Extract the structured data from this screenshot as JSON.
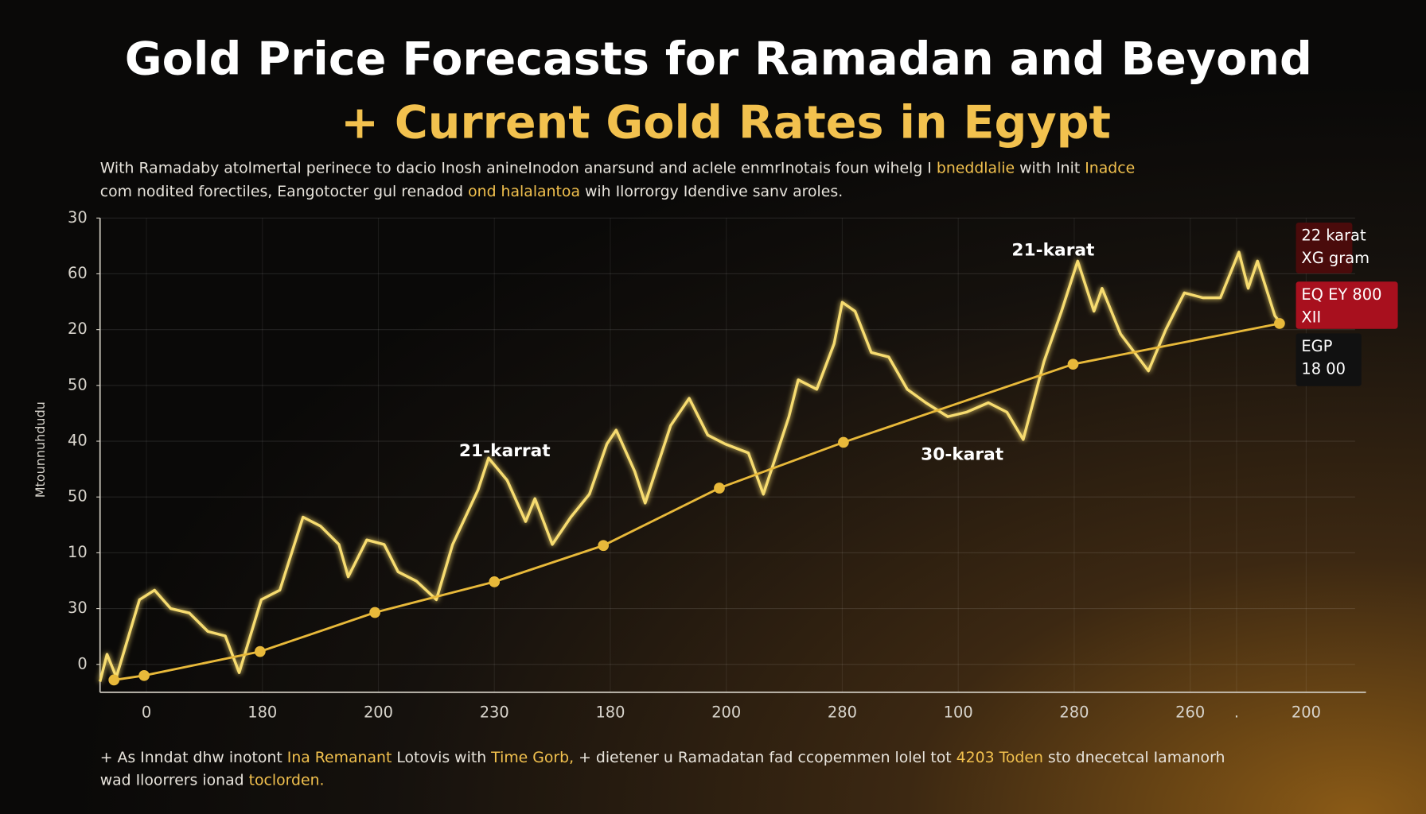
{
  "chart_data": {
    "type": "line",
    "title": "Gold Price Forecasts for Ramadan and Beyond",
    "title_line2": "+ Current Gold Rates in Egypt",
    "title_line2_color": "#f2c14e",
    "subtitle": [
      [
        {
          "text": "With Ramadaby atolmertal perinece to dacio Inosh anineInodon anarsund and aclele enmrInotais foun wihelg I ",
          "highlight": false
        },
        {
          "text": "bneddlalie",
          "highlight": true
        },
        {
          "text": " with Init ",
          "highlight": false
        },
        {
          "text": "Inadce",
          "highlight": true
        }
      ],
      [
        {
          "text": "com nodited forectiles, Eangotocter gul renadod ",
          "highlight": false
        },
        {
          "text": "ond halalantoa",
          "highlight": true
        },
        {
          "text": " wih Ilorrorgy Idendive sanv aroles.",
          "highlight": false
        }
      ]
    ],
    "footnote": [
      [
        {
          "text": "+ As Inndat dhw inotont ",
          "highlight": false
        },
        {
          "text": "Ina Remanant",
          "highlight": true
        },
        {
          "text": " Lotovis with ",
          "highlight": false
        },
        {
          "text": "Time Gorb,",
          "highlight": true
        },
        {
          "text": " + dietener u Ramadatan fad ccopemmen lolel tot ",
          "highlight": false
        },
        {
          "text": "4203 Toden",
          "highlight": true
        },
        {
          "text": " sto dnecetcal Iamanorh",
          "highlight": false
        }
      ],
      [
        {
          "text": "wad Iloorrers ionad ",
          "highlight": false
        },
        {
          "text": "toclorden.",
          "highlight": true
        }
      ]
    ],
    "highlight_color": "#f2c14e",
    "y_label": "Mtounnuhdudu",
    "xlim": [
      -0.4,
      10.5
    ],
    "ylim": [
      -0.5,
      8
    ],
    "xticks": [
      0,
      {
        "value": 1,
        "label": "180"
      },
      {
        "value": 2,
        "label": "200"
      },
      {
        "value": 3,
        "label": "230"
      },
      {
        "value": 4,
        "label": "180"
      },
      {
        "value": 5,
        "label": "200"
      },
      {
        "value": 6,
        "label": "280"
      },
      {
        "value": 7,
        "label": "100"
      },
      {
        "value": 8,
        "label": "280"
      },
      {
        "value": 9,
        "label": "260"
      },
      {
        "value": 9.4,
        "label": "."
      },
      {
        "value": 10,
        "label": "200"
      }
    ],
    "yticks": [
      0,
      {
        "value": 1,
        "label": "30"
      },
      {
        "value": 2,
        "label": "10"
      },
      {
        "value": 3,
        "label": "50"
      },
      {
        "value": 4,
        "label": "40"
      },
      {
        "value": 5,
        "label": "50"
      },
      {
        "value": 6,
        "label": "20"
      },
      {
        "value": 7,
        "label": "60"
      },
      {
        "value": 8,
        "label": "30"
      }
    ],
    "grid": true,
    "series": [
      {
        "color": "#f7dc6f",
        "glow": true,
        "markers": false,
        "x": [
          -0.4,
          -0.34,
          -0.26,
          -0.06,
          0.07,
          0.21,
          0.37,
          0.53,
          0.68,
          0.8,
          0.99,
          1.15,
          1.35,
          1.5,
          1.66,
          1.74,
          1.9,
          2.05,
          2.17,
          2.33,
          2.5,
          2.64,
          2.86,
          2.95,
          3.11,
          3.27,
          3.35,
          3.5,
          3.66,
          3.82,
          3.97,
          4.05,
          4.21,
          4.3,
          4.52,
          4.68,
          4.84,
          4.99,
          5.19,
          5.32,
          5.54,
          5.62,
          5.78,
          5.93,
          6.0,
          6.11,
          6.25,
          6.4,
          6.56,
          6.72,
          6.91,
          7.07,
          7.26,
          7.42,
          7.56,
          7.74,
          7.89,
          8.03,
          8.17,
          8.24,
          8.4,
          8.64,
          8.79,
          8.95,
          9.11,
          9.26,
          9.42,
          9.5,
          9.58,
          9.73,
          9.79
        ],
        "values": [
          -0.31,
          0.18,
          -0.23,
          1.16,
          1.33,
          1.0,
          0.92,
          0.59,
          0.51,
          -0.15,
          1.16,
          1.33,
          2.64,
          2.48,
          2.15,
          1.57,
          2.23,
          2.15,
          1.66,
          1.49,
          1.16,
          2.15,
          3.13,
          3.7,
          3.3,
          2.56,
          2.97,
          2.15,
          2.64,
          3.05,
          3.95,
          4.2,
          3.46,
          2.89,
          4.28,
          4.77,
          4.11,
          3.95,
          3.79,
          3.05,
          4.44,
          5.1,
          4.93,
          5.75,
          6.49,
          6.33,
          5.59,
          5.51,
          4.93,
          4.69,
          4.44,
          4.52,
          4.69,
          4.52,
          4.03,
          5.43,
          6.33,
          7.23,
          6.33,
          6.74,
          5.92,
          5.26,
          6.0,
          6.66,
          6.57,
          6.57,
          7.39,
          6.74,
          7.23,
          6.25,
          6.08
        ]
      },
      {
        "color": "#e8b93a",
        "glow": false,
        "markers": true,
        "x": [
          -0.28,
          -0.02,
          0.98,
          1.97,
          3.0,
          3.94,
          4.94,
          6.01,
          7.99,
          9.77
        ],
        "values": [
          -0.28,
          -0.2,
          0.23,
          0.93,
          1.48,
          2.13,
          3.16,
          3.98,
          5.38,
          6.11
        ]
      }
    ],
    "annotations": [
      "21-karrat",
      "21-karat",
      "30-karat"
    ],
    "side_labels": [
      {
        "lines": [
          "22 karat",
          "XG gram"
        ],
        "color": "#4a0b0b"
      },
      {
        "lines": [
          "EQ EY 800",
          "XII"
        ],
        "color": "#a8101e"
      },
      {
        "lines": [
          "EGP",
          "18 00"
        ],
        "color": "#111111"
      }
    ]
  }
}
